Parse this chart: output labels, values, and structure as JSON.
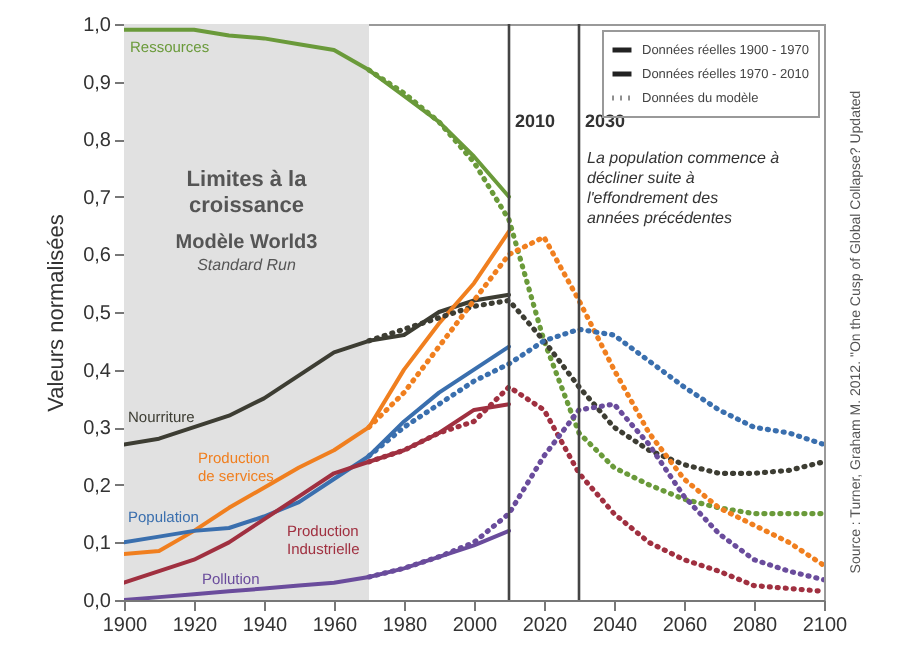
{
  "chart_data": {
    "type": "line",
    "title": "Limites à la croissance",
    "subtitle": "Modèle World3",
    "ylabel": "Valeurs normalisées",
    "xlim": [
      1900,
      2100
    ],
    "xticks": [
      1900,
      1920,
      1940,
      1960,
      1980,
      2000,
      2020,
      2040,
      2060,
      2080,
      2100
    ],
    "ylim": [
      0,
      1
    ],
    "yticks": [
      {
        "value": 0,
        "label": "0,0"
      },
      {
        "value": 0.1,
        "label": "0,1"
      },
      {
        "value": 0.2,
        "label": "0,2"
      },
      {
        "value": 0.3,
        "label": "0,3"
      },
      {
        "value": 0.4,
        "label": "0,4"
      },
      {
        "value": 0.5,
        "label": "0,5"
      },
      {
        "value": 0.6,
        "label": "0,6"
      },
      {
        "value": 0.7,
        "label": "0,7"
      },
      {
        "value": 0.8,
        "label": "0,8"
      },
      {
        "value": 0.9,
        "label": "0,9"
      },
      {
        "value": 1,
        "label": "1,0"
      }
    ],
    "series": [
      {
        "name": "Ressources",
        "color": "#6a9a3a",
        "line_style": "solid",
        "x": [
          1900,
          1910,
          1920,
          1930,
          1940,
          1950,
          1960,
          1970,
          1980,
          1990,
          2000,
          2010
        ],
        "values": [
          0.99,
          0.99,
          0.99,
          0.98,
          0.975,
          0.965,
          0.955,
          0.92,
          0.875,
          0.83,
          0.77,
          0.7
        ]
      },
      {
        "name": "Nourriture",
        "color": "#3d3d33",
        "line_style": "solid",
        "x": [
          1900,
          1910,
          1920,
          1930,
          1940,
          1950,
          1960,
          1970,
          1980,
          1990,
          2000,
          2010
        ],
        "values": [
          0.27,
          0.28,
          0.3,
          0.32,
          0.35,
          0.39,
          0.43,
          0.45,
          0.46,
          0.5,
          0.52,
          0.53
        ]
      },
      {
        "name": "Production de services",
        "color": "#f07f1f",
        "line_style": "solid",
        "x": [
          1900,
          1910,
          1920,
          1930,
          1940,
          1950,
          1960,
          1970,
          1980,
          1990,
          2000,
          2010
        ],
        "values": [
          0.08,
          0.085,
          0.12,
          0.16,
          0.195,
          0.23,
          0.26,
          0.3,
          0.4,
          0.48,
          0.55,
          0.64
        ]
      },
      {
        "name": "Population",
        "color": "#3a6fae",
        "line_style": "solid",
        "x": [
          1900,
          1910,
          1920,
          1930,
          1940,
          1950,
          1960,
          1970,
          1980,
          1990,
          2000,
          2010
        ],
        "values": [
          0.1,
          0.11,
          0.12,
          0.125,
          0.145,
          0.17,
          0.21,
          0.25,
          0.31,
          0.36,
          0.4,
          0.44
        ]
      },
      {
        "name": "Production Industrielle",
        "color": "#a03040",
        "line_style": "solid",
        "x": [
          1900,
          1910,
          1920,
          1930,
          1940,
          1950,
          1960,
          1970,
          1980,
          1990,
          2000,
          2010
        ],
        "values": [
          0.03,
          0.05,
          0.07,
          0.1,
          0.14,
          0.18,
          0.22,
          0.24,
          0.26,
          0.29,
          0.33,
          0.34
        ]
      },
      {
        "name": "Pollution",
        "color": "#6a4c9c",
        "line_style": "solid",
        "x": [
          1900,
          1910,
          1920,
          1930,
          1940,
          1950,
          1960,
          1970,
          1980,
          1990,
          2000,
          2010
        ],
        "values": [
          0,
          0.005,
          0.01,
          0.015,
          0.02,
          0.025,
          0.03,
          0.04,
          0.055,
          0.075,
          0.095,
          0.12
        ]
      },
      {
        "color": "#6a9a3a",
        "line_style": "dotted",
        "x": [
          1970,
          1980,
          1990,
          2000,
          2010,
          2020,
          2030,
          2040,
          2050,
          2060,
          2070,
          2080,
          2090,
          2100
        ],
        "values": [
          0.92,
          0.88,
          0.83,
          0.76,
          0.66,
          0.45,
          0.29,
          0.23,
          0.2,
          0.175,
          0.16,
          0.15,
          0.15,
          0.15
        ]
      },
      {
        "color": "#3d3d33",
        "line_style": "dotted",
        "x": [
          1970,
          1980,
          1990,
          2000,
          2010,
          2020,
          2030,
          2040,
          2050,
          2060,
          2070,
          2080,
          2090,
          2100
        ],
        "values": [
          0.45,
          0.47,
          0.49,
          0.51,
          0.52,
          0.45,
          0.37,
          0.3,
          0.26,
          0.235,
          0.22,
          0.22,
          0.225,
          0.24
        ]
      },
      {
        "color": "#f07f1f",
        "line_style": "dotted",
        "x": [
          1970,
          1980,
          1990,
          2000,
          2010,
          2020,
          2030,
          2040,
          2050,
          2060,
          2070,
          2080,
          2090,
          2100
        ],
        "values": [
          0.3,
          0.36,
          0.44,
          0.52,
          0.6,
          0.63,
          0.52,
          0.4,
          0.29,
          0.21,
          0.16,
          0.13,
          0.1,
          0.06
        ]
      },
      {
        "color": "#3a6fae",
        "line_style": "dotted",
        "x": [
          1970,
          1980,
          1990,
          2000,
          2010,
          2020,
          2030,
          2040,
          2050,
          2060,
          2070,
          2080,
          2090,
          2100
        ],
        "values": [
          0.25,
          0.3,
          0.34,
          0.38,
          0.41,
          0.45,
          0.47,
          0.46,
          0.415,
          0.37,
          0.33,
          0.3,
          0.29,
          0.27
        ]
      },
      {
        "color": "#a03040",
        "line_style": "dotted",
        "x": [
          1970,
          1980,
          1990,
          2000,
          2010,
          2020,
          2030,
          2040,
          2050,
          2060,
          2070,
          2080,
          2090,
          2100
        ],
        "values": [
          0.24,
          0.26,
          0.29,
          0.31,
          0.37,
          0.33,
          0.22,
          0.15,
          0.1,
          0.07,
          0.05,
          0.025,
          0.02,
          0.015
        ]
      },
      {
        "color": "#6a4c9c",
        "line_style": "dotted",
        "x": [
          1970,
          1980,
          1990,
          2000,
          2010,
          2020,
          2030,
          2040,
          2050,
          2060,
          2070,
          2080,
          2090,
          2100
        ],
        "values": [
          0.04,
          0.055,
          0.075,
          0.1,
          0.15,
          0.25,
          0.33,
          0.34,
          0.27,
          0.18,
          0.115,
          0.07,
          0.05,
          0.035
        ]
      }
    ],
    "bands": [
      {
        "axis": "x",
        "from": 1900,
        "to": 1970,
        "color": "#e1e1e1"
      }
    ],
    "ref_lines": [
      {
        "axis": "x",
        "value": 2010,
        "label": "2010",
        "color": "#444444"
      },
      {
        "axis": "x",
        "value": 2030,
        "label": "2030",
        "color": "#444444"
      }
    ],
    "annotations": [
      "Données réelles 1900 - 1970",
      "Données réelles 1970 - 2010",
      "Données du modèle",
      "Standard Run",
      "Source : Turner, Graham M. 2012. \"On the Cusp of Global Collapse? Updated",
      {
        "text": "La population commence à décliner suite à l'effondrement des années précédentes",
        "x": 2030,
        "y": 0.78
      }
    ]
  }
}
